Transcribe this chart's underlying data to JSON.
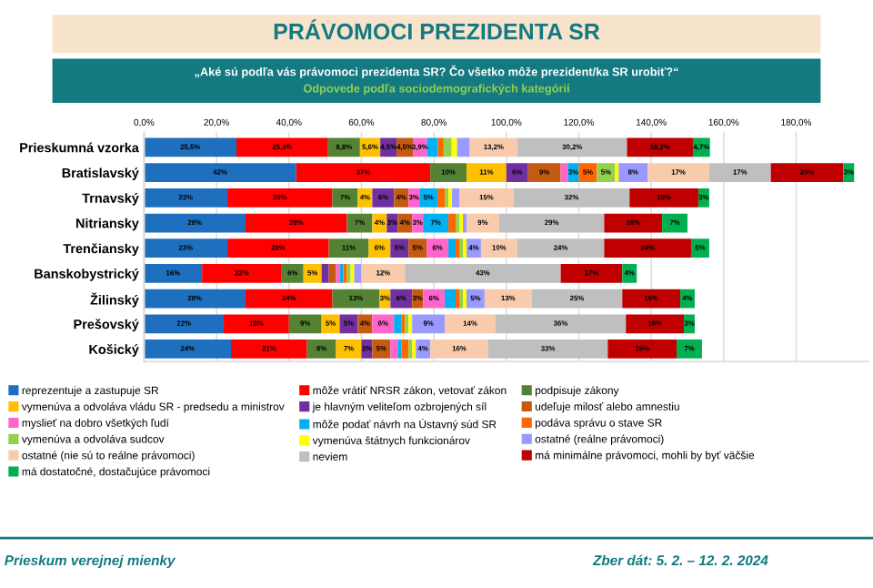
{
  "chart_data": {
    "type": "bar",
    "orientation": "horizontal",
    "stacked": true,
    "title": "PRÁVOMOCI PREZIDENTA SR",
    "subtitle": "„Aké sú podľa vás právomoci prezidenta SR? Čo všetko môže prezident/ka SR urobiť?“\nOdpovede podľa sociodemografických kategórií",
    "categories": [
      "Prieskumná vzorka",
      "Bratislavský",
      "Trnavský",
      "Nitriansky",
      "Trenčiansky",
      "Banskobystrický",
      "Žilinský",
      "Prešovský",
      "Košický"
    ],
    "xlim": [
      0,
      200
    ],
    "xticks": [
      {
        "value": 0,
        "label": "0,0%"
      },
      {
        "value": 20,
        "label": "20,0%"
      },
      {
        "value": 40,
        "label": "40,0%"
      },
      {
        "value": 60,
        "label": "60,0%"
      },
      {
        "value": 80,
        "label": "80,0%"
      },
      {
        "value": 100,
        "label": "100,0%"
      },
      {
        "value": 120,
        "label": "120,0%"
      },
      {
        "value": 140,
        "label": "140,0%"
      },
      {
        "value": 160,
        "label": "160,0%"
      },
      {
        "value": 180,
        "label": "180,0%"
      }
    ],
    "grid": "x",
    "legend": "bottom",
    "series": [
      {
        "name": "reprezentuje a zastupuje SR",
        "color": "#1f6fbf",
        "values": [
          25.5,
          42,
          23,
          28,
          23,
          16,
          28,
          22,
          24
        ],
        "value_labels": [
          "25,5%",
          "42%",
          "23%",
          "28%",
          "23%",
          "16%",
          "28%",
          "22%",
          "24%"
        ]
      },
      {
        "name": "môže vrátiť NRSR zákon, vetovať zákon",
        "color": "#ff0000",
        "values": [
          25.3,
          37,
          29,
          28,
          28,
          22,
          24,
          18,
          21
        ],
        "value_labels": [
          "25,3%",
          "37%",
          "29%",
          "28%",
          "28%",
          "22%",
          "24%",
          "18%",
          "21%"
        ]
      },
      {
        "name": "podpisuje zákony",
        "color": "#548235",
        "values": [
          8.8,
          10,
          7,
          7,
          11,
          6,
          13,
          9,
          8
        ],
        "value_labels": [
          "8,8%",
          "10%",
          "7%",
          "7%",
          "11%",
          "6%",
          "13%",
          "9%",
          "8%"
        ]
      },
      {
        "name": "vymenúva a odvoláva vládu SR - predsedu a ministrov",
        "color": "#ffc000",
        "values": [
          5.6,
          11,
          4,
          4,
          6,
          5,
          3,
          5,
          7
        ],
        "value_labels": [
          "5,6%",
          "11%",
          "4%",
          "4%",
          "6%",
          "5%",
          "3%",
          "5%",
          "7%"
        ]
      },
      {
        "name": "je hlavným veliteľom ozbrojených síl",
        "color": "#7030a0",
        "values": [
          4.5,
          6,
          6,
          3,
          5,
          2,
          6,
          5,
          3
        ],
        "value_labels": [
          "4,5%",
          "6%",
          "6%",
          "3%",
          "5%",
          null,
          "6%",
          "5%",
          "3%"
        ]
      },
      {
        "name": "udeľuje milosť alebo amnestiu",
        "color": "#c55a11",
        "values": [
          4.5,
          9,
          4,
          4,
          5,
          2,
          3,
          4,
          5
        ],
        "value_labels": [
          "4,5%",
          "9%",
          "4%",
          "4%",
          "5%",
          null,
          "3%",
          "4%",
          "5%"
        ]
      },
      {
        "name": "myslieť na dobro všetkých ľudí",
        "color": "#ff66cc",
        "values": [
          3.9,
          2,
          3,
          3,
          6,
          1,
          6,
          6,
          2
        ],
        "value_labels": [
          "3,9%",
          null,
          "3%",
          "3%",
          "6%",
          null,
          "6%",
          "6%",
          null
        ]
      },
      {
        "name": "môže podať návrh na Ústavný súd SR",
        "color": "#00b0f0",
        "values": [
          3.0,
          3,
          5,
          7,
          2,
          1,
          3,
          2,
          1
        ],
        "value_labels": [
          null,
          "3%",
          "5%",
          "7%",
          null,
          null,
          null,
          null,
          null
        ]
      },
      {
        "name": "podáva správu o stave SR",
        "color": "#ff6600",
        "values": [
          1.6,
          5,
          2,
          2,
          1,
          1,
          1,
          1,
          2
        ],
        "value_labels": [
          null,
          "5%",
          null,
          null,
          null,
          null,
          null,
          null,
          null
        ]
      },
      {
        "name": "vymenúva a odvoláva sudcov",
        "color": "#92d050",
        "values": [
          2.2,
          5,
          1,
          1,
          1,
          1,
          1,
          1,
          1
        ],
        "value_labels": [
          null,
          "5%",
          null,
          null,
          null,
          null,
          null,
          null,
          null
        ]
      },
      {
        "name": "vymenúva štátnych funkcionárov",
        "color": "#ffff00",
        "values": [
          1.5,
          1,
          1,
          1,
          1,
          1,
          1,
          1,
          1
        ],
        "value_labels": [
          null,
          null,
          null,
          null,
          null,
          null,
          null,
          null,
          null
        ]
      },
      {
        "name": "ostatné (reálne právomoci)",
        "color": "#9999ff",
        "values": [
          3.5,
          8,
          2,
          1,
          4,
          2,
          5,
          9,
          4
        ],
        "value_labels": [
          null,
          "8%",
          null,
          null,
          "4%",
          null,
          "5%",
          "9%",
          "4%"
        ]
      },
      {
        "name": "ostatné (nie sú to reálne právomoci)",
        "color": "#f8cbad",
        "values": [
          13.2,
          17,
          15,
          9,
          10,
          12,
          13,
          14,
          16
        ],
        "value_labels": [
          "13,2%",
          "17%",
          "15%",
          "9%",
          "10%",
          "12%",
          "13%",
          "14%",
          "16%"
        ]
      },
      {
        "name": "neviem",
        "color": "#bfbfbf",
        "values": [
          30.2,
          17,
          32,
          29,
          24,
          43,
          25,
          36,
          33
        ],
        "value_labels": [
          "30,2%",
          "17%",
          "32%",
          "29%",
          "24%",
          "43%",
          "25%",
          "36%",
          "33%"
        ]
      },
      {
        "name": "má minimálne právomoci, mohli by byť väčšie",
        "color": "#c00000",
        "values": [
          18.2,
          20,
          19,
          16,
          24,
          17,
          16,
          16,
          19
        ],
        "value_labels": [
          "18,2%",
          "20%",
          "19%",
          "16%",
          "24%",
          "17%",
          "16%",
          "16%",
          "19%"
        ]
      },
      {
        "name": "má dostatočné, dostačujúce právomoci",
        "color": "#00b050",
        "values": [
          4.7,
          3,
          3,
          7,
          5,
          4,
          4,
          3,
          7
        ],
        "value_labels": [
          "4,7%",
          "3%",
          "3%",
          "7%",
          "5%",
          "4%",
          "4%",
          "3%",
          "7%"
        ]
      }
    ],
    "annotations": [
      "Prieskum verejnej mienky",
      "Zber dát: 5. 2. – 12. 2. 2024"
    ]
  }
}
